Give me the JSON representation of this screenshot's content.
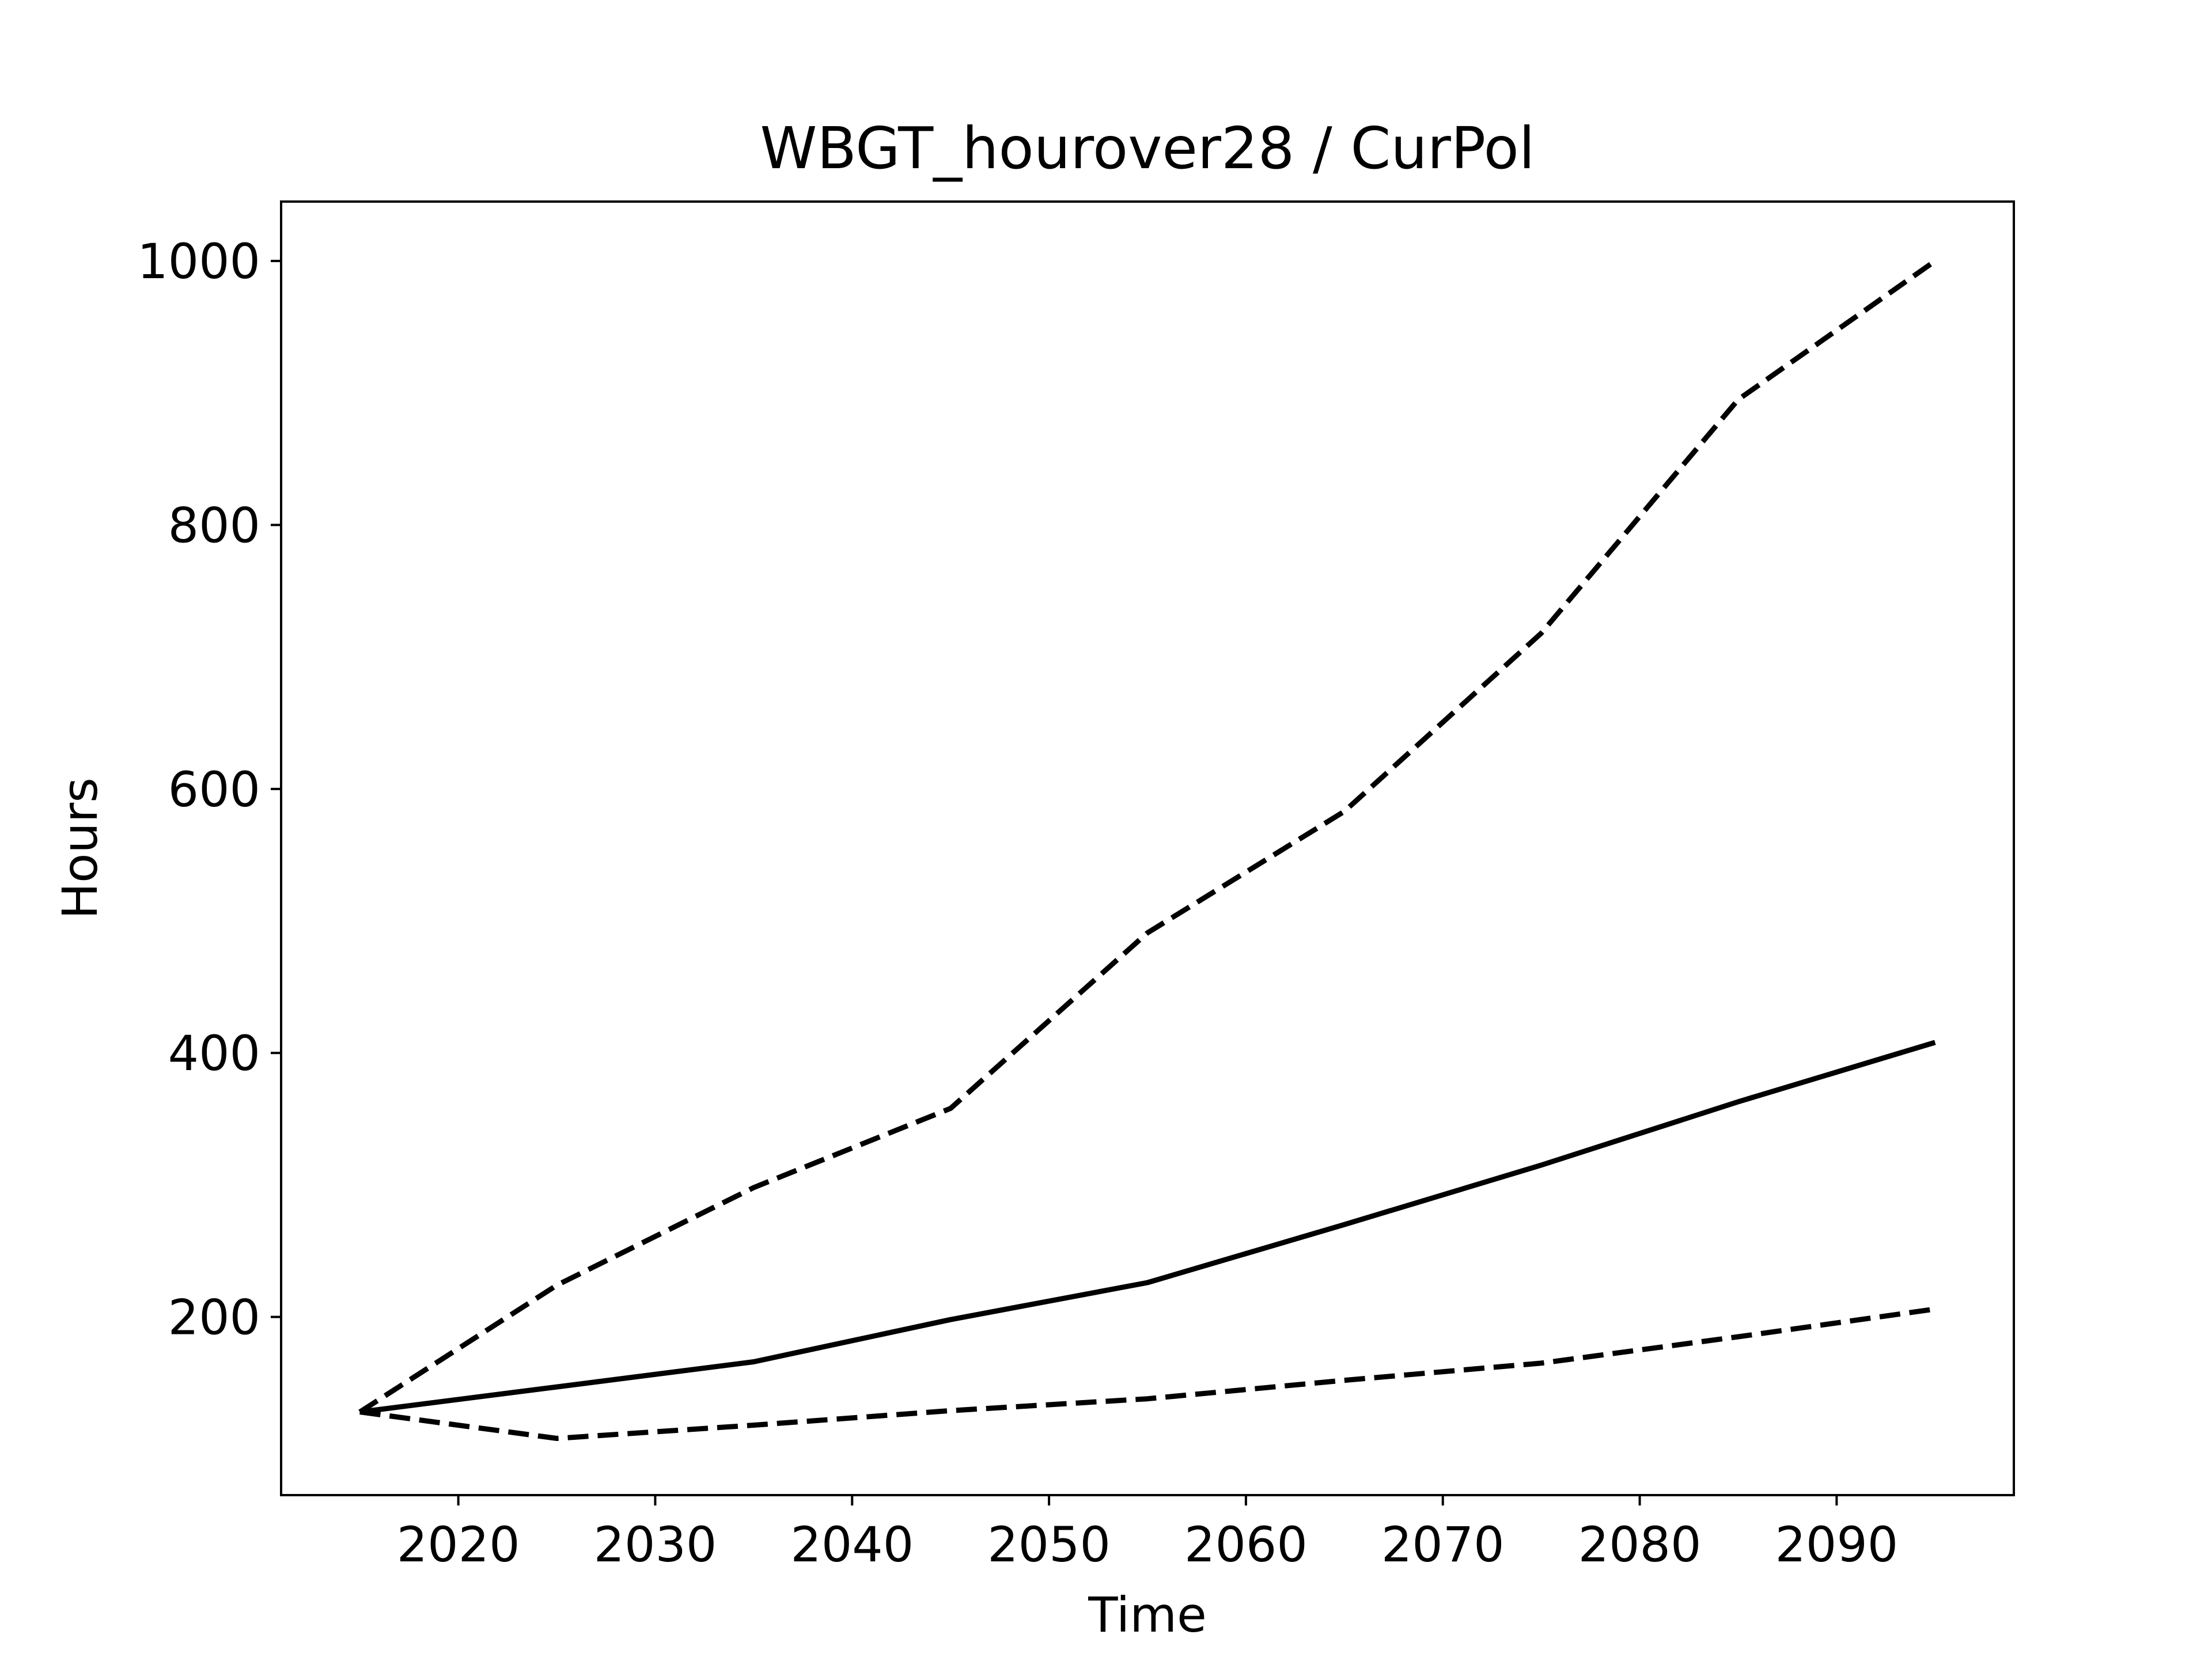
{
  "chart_data": {
    "type": "line",
    "title": "WBGT_hourover28 / CurPol",
    "xlabel": "Time",
    "ylabel": "Hours",
    "xlim": [
      2011,
      2099
    ],
    "ylim": [
      65,
      1045
    ],
    "xticks": [
      2020,
      2030,
      2040,
      2050,
      2060,
      2070,
      2080,
      2090
    ],
    "yticks": [
      200,
      400,
      600,
      800,
      1000
    ],
    "grid": false,
    "legend": "none",
    "line_color": "#000000",
    "series": [
      {
        "style": "dashed",
        "x": [
          2015,
          2025,
          2035,
          2045,
          2055,
          2065,
          2075,
          2085,
          2095
        ],
        "y": [
          128,
          224,
          298,
          358,
          491,
          583,
          718,
          895,
          1000
        ]
      },
      {
        "style": "solid",
        "x": [
          2015,
          2025,
          2035,
          2045,
          2055,
          2065,
          2075,
          2085,
          2095
        ],
        "y": [
          128,
          147,
          166,
          198,
          226,
          270,
          315,
          363,
          408
        ]
      },
      {
        "style": "dashed",
        "x": [
          2015,
          2025,
          2035,
          2045,
          2055,
          2065,
          2075,
          2085,
          2095
        ],
        "y": [
          128,
          108,
          118,
          129,
          138,
          152,
          165,
          185,
          206
        ]
      }
    ]
  }
}
